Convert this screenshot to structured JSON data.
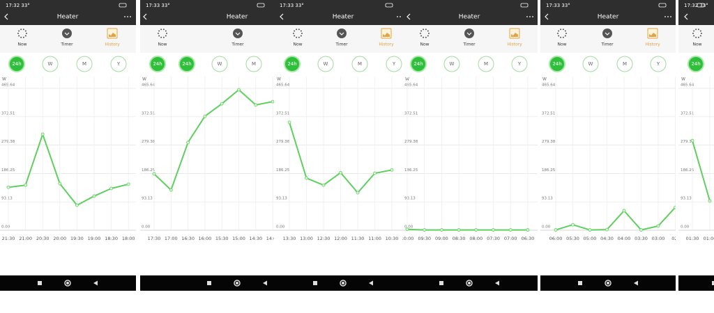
{
  "screens": [
    {
      "time": "17:32 33°",
      "title": "Heater",
      "tabs": [
        "Now",
        "Timer",
        "History"
      ],
      "ranges": [
        "24h",
        "W",
        "M",
        "Y"
      ]
    },
    {
      "time": "17:33 33°",
      "title": "Heater",
      "tabs": [
        "Now",
        "Timer"
      ],
      "ranges": [
        "24h",
        "24h",
        "W",
        "M"
      ]
    },
    {
      "time": "17:33 33°",
      "title": "Heater",
      "tabs": [
        "Now",
        "Timer",
        "History"
      ],
      "ranges": [
        "24h",
        "W",
        "M",
        "Y"
      ]
    },
    {
      "title": "Heater",
      "tabs": [
        "Now",
        "Timer",
        "History"
      ],
      "ranges": [
        "24h",
        "W",
        "M",
        "Y"
      ]
    },
    {
      "time": "17:33 33°",
      "title": "Heater",
      "tabs": [
        "Now",
        "Timer",
        "History"
      ],
      "ranges": [
        "24h",
        "W",
        "M",
        "Y"
      ]
    },
    {
      "time": "17:32 33°",
      "tabs": [
        "Now"
      ],
      "ranges": [
        "24h"
      ]
    }
  ],
  "chart_data": [
    {
      "type": "line",
      "ylabel": "W",
      "color": "#5fcf5f",
      "ylim": [
        0,
        465.64
      ],
      "yticks": [
        {
          "value": 0,
          "label": "0.00"
        },
        93.13,
        186.25,
        279.38,
        372.51,
        465.64
      ],
      "grid": true,
      "categories": [
        "21:30",
        "21:00",
        "20:30",
        "20:00",
        "19:30",
        "19:00",
        "18:30",
        "18:00"
      ],
      "values": [
        141,
        148,
        315,
        153,
        82,
        112,
        137,
        151
      ]
    },
    {
      "type": "line",
      "ylabel": "W",
      "color": "#5fcf5f",
      "ylim": [
        0,
        465.64
      ],
      "yticks": [
        {
          "value": 0,
          "label": "0.00"
        },
        93.13,
        186.25,
        279.38,
        372.51,
        465.64
      ],
      "grid": true,
      "categories": [
        "17:30",
        "17:00",
        "16:30",
        "16:00",
        "15:30",
        "15:00",
        "14:30",
        "14:00"
      ],
      "values": [
        185,
        132,
        288,
        374,
        415,
        461,
        411,
        422
      ]
    },
    {
      "type": "line",
      "ylabel": "W",
      "color": "#5fcf5f",
      "ylim": [
        0,
        465.64
      ],
      "yticks": [
        {
          "value": 0,
          "label": "0.00"
        },
        93.13,
        186.25,
        279.38,
        372.51,
        465.64
      ],
      "grid": true,
      "categories": [
        "13:30",
        "13:00",
        "12:30",
        "12:00",
        "11:30",
        "11:00",
        "10:30"
      ],
      "values": [
        354,
        171,
        148,
        189,
        123,
        187,
        198
      ]
    },
    {
      "type": "line",
      "ylabel": "W",
      "color": "#5fcf5f",
      "ylim": [
        0,
        465.64
      ],
      "yticks": [
        {
          "value": 0,
          "label": "0.00"
        },
        93.13,
        186.25,
        279.38,
        372.51,
        465.64
      ],
      "grid": true,
      "categories": [
        "10:00",
        "09:30",
        "09:00",
        "08:30",
        "08:00",
        "07:30",
        "07:00",
        "06:30"
      ],
      "values": [
        3,
        1,
        1,
        1,
        1,
        1,
        1,
        1
      ]
    },
    {
      "type": "line",
      "ylabel": "W",
      "color": "#5fcf5f",
      "ylim": [
        0,
        465.64
      ],
      "yticks": [
        {
          "value": 0,
          "label": "0.00"
        },
        93.13,
        186.25,
        279.38,
        372.51,
        465.64
      ],
      "grid": true,
      "categories": [
        "06:00",
        "05:30",
        "05:00",
        "04:30",
        "04:00",
        "03:30",
        "03:00",
        "02:"
      ],
      "values": [
        1,
        18,
        1,
        2,
        64,
        1,
        14,
        75
      ]
    },
    {
      "type": "line",
      "ylabel": "W",
      "color": "#5fcf5f",
      "ylim": [
        0,
        465.64
      ],
      "yticks": [
        {
          "value": 0,
          "label": "0.00"
        },
        93.13,
        186.25,
        279.38,
        372.51,
        465.64
      ],
      "grid": true,
      "categories": [
        "01:30",
        "01:00"
      ],
      "values": [
        294,
        96
      ]
    }
  ]
}
